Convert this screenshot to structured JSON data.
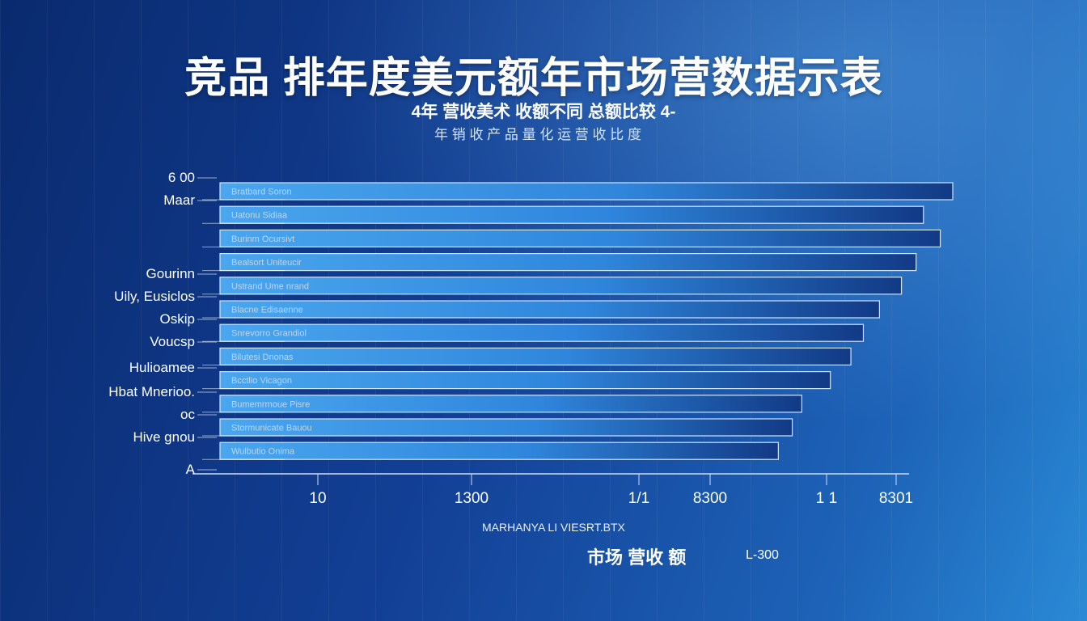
{
  "title": "竞品 排年度美元额年市场营数据示表",
  "subtitle": "4年  营收美术 收额不同 总额比较  4-",
  "subtitle2": "年 销 收 产 品 量 化 运 营 收 比 度",
  "axis_caption": "MARHANYA LI VIESRT.BTX",
  "axis_subtitle": "市场 营收 额",
  "axis_subtitle_right": "L-300",
  "chart_data": {
    "type": "bar",
    "orientation": "horizontal",
    "title": "竞品 排年度美元额年市场营数据示表",
    "xlabel": "MARHANYA LI VIESRT.BTX",
    "ylabel": "",
    "x_tick_labels": [
      "10",
      "1300",
      "1/1",
      "8300",
      "1 1",
      "8301"
    ],
    "xlim": [
      0,
      1000
    ],
    "left_labels": [
      "6 00",
      "Maar",
      "Gourinn",
      "Uily, Eusiclos",
      "Oskip",
      "Voucsp",
      "Hulioamee",
      "Hbat Mnerioo.",
      "oc",
      "Hive gnou",
      "A"
    ],
    "bar_labels": [
      "Bratbard Soron",
      "Uatonu Sidiaa",
      "Burinm Ocursivt",
      "Bealsort Uniteucir",
      "Ustrand Ume nrand",
      "Blacne Edisaenne",
      "Snrevorro Grandiol",
      "Bilutesi Dnonas",
      "Bcctlio Vicagon",
      "Bumemrmoue Pisre",
      "Stormunicate Bauou",
      "Wulbutio Onima"
    ],
    "values": [
      1000,
      960,
      983,
      950,
      930,
      900,
      878,
      861,
      833,
      794,
      781,
      762
    ],
    "grid": false,
    "legend": "none",
    "colors": {
      "bar_light": "#3f9be8",
      "bar_dark": "#0e2f76",
      "bar_border": "#cfe6ff",
      "axis": "#d0dcf5"
    }
  }
}
